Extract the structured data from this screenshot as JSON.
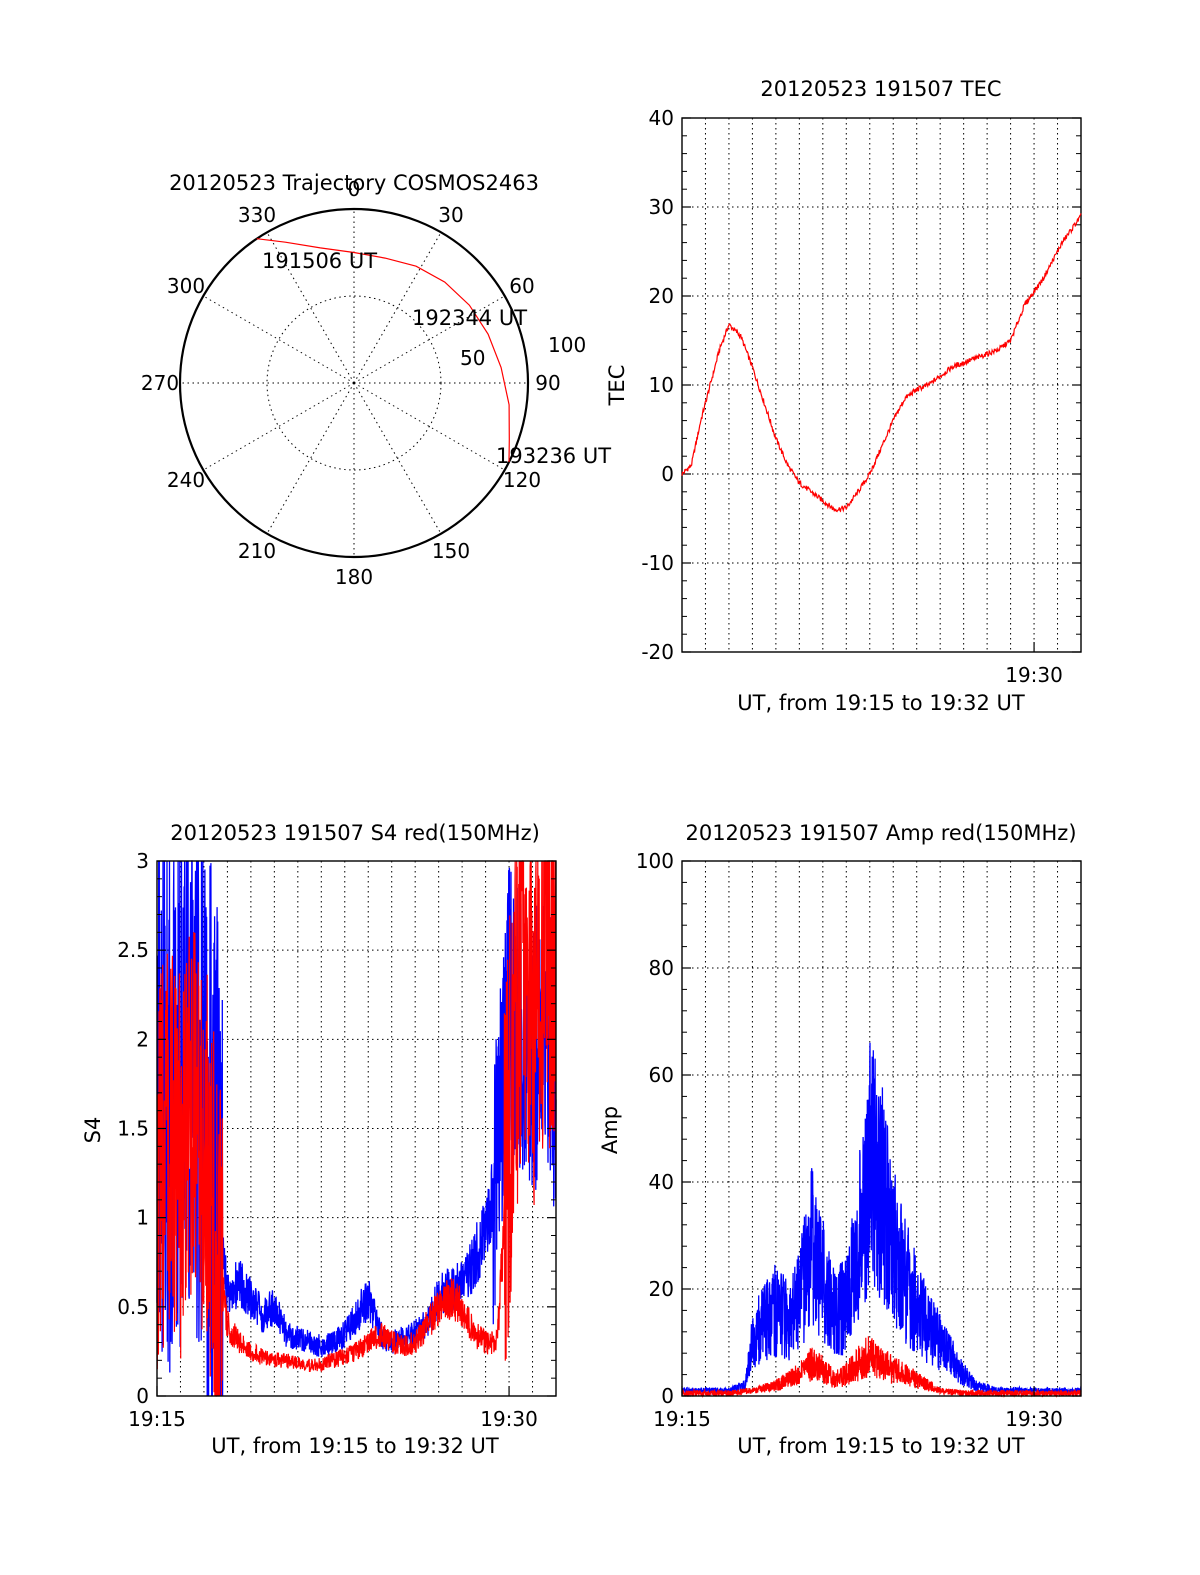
{
  "chart_data": [
    {
      "id": "trajectory",
      "type": "polar",
      "title": "20120523 Trajectory COSMOS2463",
      "azimuth_labels": [
        "0",
        "30",
        "60",
        "90",
        "120",
        "150",
        "180",
        "210",
        "240",
        "270",
        "300",
        "330"
      ],
      "radius_labels": [
        "50",
        "100"
      ],
      "radius_max": 100,
      "start_label": "191506 UT",
      "mid_label": "192344 UT",
      "end_label": "193236 UT",
      "track": [
        {
          "az": 326,
          "r": 100
        },
        {
          "az": 334,
          "r": 90
        },
        {
          "az": 346,
          "r": 80
        },
        {
          "az": 0,
          "r": 75
        },
        {
          "az": 14,
          "r": 74
        },
        {
          "az": 28,
          "r": 76
        },
        {
          "az": 42,
          "r": 78
        },
        {
          "az": 56,
          "r": 80
        },
        {
          "az": 70,
          "r": 82
        },
        {
          "az": 84,
          "r": 85
        },
        {
          "az": 98,
          "r": 90
        },
        {
          "az": 110,
          "r": 95
        },
        {
          "az": 117,
          "r": 100
        }
      ],
      "track_color": "#ff0000"
    },
    {
      "id": "tec",
      "type": "line",
      "title": "20120523 191507 TEC",
      "ylabel": "TEC",
      "xlabel": "UT, from 19:15 to 19:32 UT",
      "x_tick_labels": [
        "19:30"
      ],
      "y_tick_labels": [
        "-20",
        "-10",
        "0",
        "10",
        "20",
        "30",
        "40"
      ],
      "xlim": [
        0,
        17
      ],
      "ylim": [
        -20,
        40
      ],
      "series": [
        {
          "color": "#ff0000",
          "x": [
            0,
            0.4,
            0.8,
            1.2,
            1.6,
            2.0,
            2.5,
            3.0,
            3.5,
            4.0,
            4.5,
            5.0,
            5.5,
            6.0,
            6.5,
            7.0,
            7.5,
            8.0,
            8.5,
            9.0,
            9.5,
            10.0,
            10.5,
            11.0,
            11.5,
            12.0,
            12.5,
            13.0,
            13.5,
            14.0,
            14.3,
            14.6,
            15.0,
            15.4,
            15.8,
            16.2,
            16.6,
            17.0
          ],
          "y": [
            0,
            1,
            6,
            10,
            14,
            16.8,
            15.5,
            12,
            8,
            4,
            1,
            -1,
            -2,
            -3,
            -4,
            -3.8,
            -2,
            0,
            3,
            6,
            8.5,
            9.5,
            10,
            11,
            12,
            12.5,
            13,
            13.5,
            14,
            15,
            17,
            19,
            20.5,
            22,
            24,
            26,
            27.5,
            29
          ]
        }
      ]
    },
    {
      "id": "s4",
      "type": "line",
      "title": "20120523 191507 S4 red(150MHz)",
      "ylabel": "S4",
      "xlabel": "UT, from 19:15 to 19:32 UT",
      "x_tick_labels": [
        "19:15",
        "19:30"
      ],
      "y_tick_labels": [
        "0",
        "0.5",
        "1",
        "1.5",
        "2",
        "2.5",
        "3"
      ],
      "xlim": [
        0,
        17
      ],
      "ylim": [
        0,
        3
      ],
      "series": [
        {
          "color": "#0000ff",
          "x": [
            0,
            0.5,
            1.0,
            1.5,
            2.0,
            2.5,
            3.0,
            3.5,
            4.0,
            4.5,
            5.0,
            5.5,
            6.0,
            6.5,
            7.0,
            7.5,
            8.0,
            8.5,
            9.0,
            9.5,
            10.0,
            10.5,
            11.0,
            11.5,
            12.0,
            12.5,
            13.0,
            13.5,
            14.0,
            14.5,
            15.0,
            15.5,
            16.0,
            16.5,
            17.0
          ],
          "y": [
            1.6,
            1.8,
            1.7,
            2.0,
            1.5,
            1.2,
            0.55,
            0.65,
            0.55,
            0.45,
            0.5,
            0.35,
            0.32,
            0.3,
            0.28,
            0.3,
            0.35,
            0.45,
            0.55,
            0.35,
            0.3,
            0.32,
            0.35,
            0.4,
            0.55,
            0.6,
            0.65,
            0.75,
            0.95,
            1.25,
            2.2,
            2.0,
            1.9,
            2.1,
            1.8
          ]
        },
        {
          "color": "#ff0000",
          "x": [
            0,
            0.5,
            1.0,
            1.5,
            2.0,
            2.5,
            3.0,
            3.5,
            4.0,
            4.5,
            5.0,
            5.5,
            6.0,
            6.5,
            7.0,
            7.5,
            8.0,
            8.5,
            9.0,
            9.5,
            10.0,
            10.5,
            11.0,
            11.5,
            12.0,
            12.5,
            13.0,
            13.5,
            14.0,
            14.5,
            15.0,
            15.5,
            16.0,
            16.5,
            17.0
          ],
          "y": [
            1.2,
            1.5,
            1.3,
            1.6,
            1.4,
            0.9,
            0.4,
            0.3,
            0.25,
            0.22,
            0.2,
            0.2,
            0.18,
            0.17,
            0.18,
            0.2,
            0.22,
            0.25,
            0.3,
            0.35,
            0.3,
            0.28,
            0.3,
            0.4,
            0.5,
            0.55,
            0.5,
            0.35,
            0.3,
            0.3,
            1.5,
            2.5,
            2.2,
            2.6,
            2.4
          ]
        }
      ]
    },
    {
      "id": "amp",
      "type": "line",
      "title": "20120523 191507 Amp red(150MHz)",
      "ylabel": "Amp",
      "xlabel": "UT, from 19:15 to 19:32 UT",
      "x_tick_labels": [
        "19:15",
        "19:30"
      ],
      "y_tick_labels": [
        "0",
        "20",
        "40",
        "60",
        "80",
        "100"
      ],
      "xlim": [
        0,
        17
      ],
      "ylim": [
        0,
        100
      ],
      "series": [
        {
          "color": "#0000ff",
          "x": [
            0,
            1.0,
            2.0,
            2.7,
            3.0,
            3.5,
            4.0,
            4.5,
            5.0,
            5.5,
            6.0,
            6.5,
            7.0,
            7.5,
            8.0,
            8.5,
            9.0,
            9.5,
            10.0,
            10.5,
            11.0,
            11.5,
            12.0,
            12.5,
            13.0,
            13.5,
            14.0,
            15.0,
            16.0,
            17.0
          ],
          "y": [
            1,
            1,
            1,
            2,
            10,
            14,
            16,
            14,
            18,
            28,
            22,
            15,
            17,
            28,
            45,
            38,
            28,
            22,
            17,
            13,
            10,
            7,
            4,
            2,
            1.5,
            1,
            1,
            1,
            1,
            1
          ]
        },
        {
          "color": "#ff0000",
          "x": [
            0,
            2.0,
            3.0,
            4.0,
            4.5,
            5.0,
            5.5,
            6.0,
            6.5,
            7.0,
            7.5,
            8.0,
            8.5,
            9.0,
            9.5,
            10.0,
            10.5,
            11.0,
            12.0,
            14.0,
            17.0
          ],
          "y": [
            0.5,
            0.5,
            1,
            2,
            3,
            4,
            6,
            5,
            3,
            4,
            6,
            8,
            6,
            5,
            4,
            3,
            2,
            1,
            0.5,
            0.5,
            0.5
          ]
        }
      ]
    }
  ]
}
